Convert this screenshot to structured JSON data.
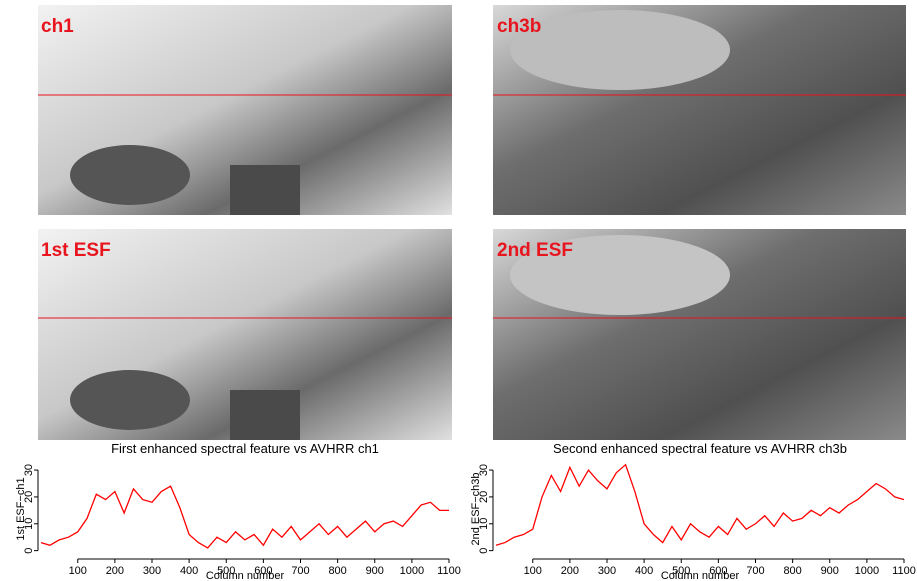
{
  "images": [
    {
      "label": "ch1"
    },
    {
      "label": "ch3b"
    },
    {
      "label": "1st ESF"
    },
    {
      "label": "2nd ESF"
    }
  ],
  "chart_data": [
    {
      "type": "line",
      "title": "First enhanced spectral feature vs AVHRR ch1",
      "x_label": "Column number",
      "y_label": "1st ESF−ch1",
      "x": [
        1,
        25,
        50,
        75,
        100,
        125,
        150,
        175,
        200,
        225,
        250,
        275,
        300,
        325,
        350,
        375,
        400,
        425,
        450,
        475,
        500,
        525,
        550,
        575,
        600,
        625,
        650,
        675,
        700,
        725,
        750,
        775,
        800,
        825,
        850,
        875,
        900,
        925,
        950,
        975,
        1000,
        1025,
        1050,
        1075,
        1100
      ],
      "series": [
        {
          "name": "1st ESF−ch1",
          "color": "#ff0000",
          "values": [
            3,
            2,
            4,
            5,
            7,
            12,
            21,
            19,
            22,
            14,
            23,
            19,
            18,
            22,
            24,
            16,
            6,
            3,
            1,
            5,
            3,
            7,
            4,
            6,
            2,
            8,
            5,
            9,
            4,
            7,
            10,
            6,
            9,
            5,
            8,
            11,
            7,
            10,
            11,
            9,
            13,
            17,
            18,
            15,
            15
          ]
        }
      ],
      "xlim": [
        1,
        1100
      ],
      "xticks": [
        100,
        200,
        300,
        400,
        500,
        600,
        700,
        800,
        900,
        1000,
        1100
      ],
      "ylim": [
        -2,
        33
      ],
      "yticks": [
        0,
        10,
        20,
        30
      ]
    },
    {
      "type": "line",
      "title": "Second enhanced spectral feature vs AVHRR ch3b",
      "x_label": "Column number",
      "y_label": "2nd ESF−ch3b",
      "x": [
        1,
        25,
        50,
        75,
        100,
        125,
        150,
        175,
        200,
        225,
        250,
        275,
        300,
        325,
        350,
        375,
        400,
        425,
        450,
        475,
        500,
        525,
        550,
        575,
        600,
        625,
        650,
        675,
        700,
        725,
        750,
        775,
        800,
        825,
        850,
        875,
        900,
        925,
        950,
        975,
        1000,
        1025,
        1050,
        1075,
        1100
      ],
      "series": [
        {
          "name": "2nd ESF−ch3b",
          "color": "#ff0000",
          "values": [
            2,
            3,
            5,
            6,
            8,
            20,
            28,
            22,
            31,
            24,
            30,
            26,
            23,
            29,
            32,
            22,
            10,
            6,
            3,
            9,
            4,
            10,
            7,
            5,
            9,
            6,
            12,
            8,
            10,
            13,
            9,
            14,
            11,
            12,
            15,
            13,
            16,
            14,
            17,
            19,
            22,
            25,
            23,
            20,
            19
          ]
        }
      ],
      "xlim": [
        1,
        1100
      ],
      "xticks": [
        100,
        200,
        300,
        400,
        500,
        600,
        700,
        800,
        900,
        1000,
        1100
      ],
      "ylim": [
        -2,
        33
      ],
      "yticks": [
        0,
        10,
        20,
        30
      ]
    }
  ]
}
